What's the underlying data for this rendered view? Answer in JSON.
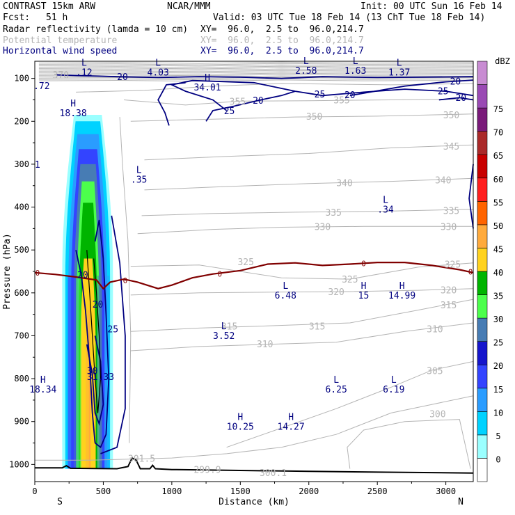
{
  "header": {
    "model": "CONTRAST 15km ARW",
    "org": "NCAR/MMM",
    "init": "Init: 00 UTC Sun 16 Feb 14",
    "fcst_label": "Fcst:",
    "fcst_value": "51 h",
    "valid": "Valid: 03 UTC Tue 18 Feb 14 (13 ChT Tue 18 Feb 14)",
    "field1": "Radar reflectivity (lamda = 10 cm)",
    "field1_xy": "XY=  96.0,  2.5 to  96.0,214.7",
    "field2": "Potential temperature",
    "field2_xy": "XY=  96.0,  2.5 to  96.0,214.7",
    "field3": "Horizontal wind speed",
    "field3_xy": "XY=  96.0,  2.5 to  96.0,214.7"
  },
  "colors": {
    "theta": "#b4b4b4",
    "wind": "#000080",
    "zero_isotherm": "#800000",
    "terrain": "#000000"
  },
  "chart_data": {
    "type": "heatmap",
    "title": "Radar reflectivity (lamda = 10 cm)",
    "xlabel": "Distance (km)",
    "ylabel": "Pressure (hPa)",
    "xlim": [
      0,
      3200
    ],
    "ylim": [
      1040,
      60
    ],
    "xticks": [
      0,
      500,
      1000,
      1500,
      2000,
      2500,
      3000
    ],
    "yticks": [
      100,
      200,
      300,
      400,
      500,
      600,
      700,
      800,
      900,
      1000
    ],
    "x_endpoints": {
      "left": "S",
      "right": "N"
    },
    "colorbar": {
      "unit": "dBZ",
      "levels": [
        0,
        5,
        10,
        15,
        20,
        25,
        30,
        35,
        40,
        45,
        50,
        55,
        60,
        65,
        70,
        75
      ],
      "colors": [
        "#ffffff",
        "#9bffff",
        "#00d2ff",
        "#2a9cff",
        "#3344ff",
        "#1515cc",
        "#477cb4",
        "#4cff4c",
        "#00b400",
        "#ffd21e",
        "#ffaa3c",
        "#ff6400",
        "#ff1e1e",
        "#c80000",
        "#aa2a2a",
        "#7a1a7a",
        "#9a4ab4",
        "#c88cd2"
      ]
    },
    "reflectivity_cell": {
      "x_range_km": [
        200,
        580
      ],
      "top_hPa": 185,
      "bottom_hPa": 1010,
      "max_dBZ": 40
    },
    "theta_isentropes": [
      {
        "value": 300,
        "label": "300",
        "x": 2940,
        "p": 882
      },
      {
        "value": 305,
        "label": "305",
        "x": 2920,
        "p": 781
      },
      {
        "value": 310,
        "label": "310",
        "x": 1680,
        "p": 719
      },
      {
        "value": 310,
        "label": "310",
        "x": 2920,
        "p": 684
      },
      {
        "value": 315,
        "label": "315",
        "x": 1420,
        "p": 677
      },
      {
        "value": 315,
        "label": "315",
        "x": 2060,
        "p": 677
      },
      {
        "value": 315,
        "label": "315",
        "x": 3020,
        "p": 628
      },
      {
        "value": 320,
        "label": "320",
        "x": 2200,
        "p": 597
      },
      {
        "value": 320,
        "label": "320",
        "x": 3020,
        "p": 593
      },
      {
        "value": 325,
        "label": "325",
        "x": 1540,
        "p": 527
      },
      {
        "value": 325,
        "label": "325",
        "x": 2300,
        "p": 568
      },
      {
        "value": 325,
        "label": "325",
        "x": 3050,
        "p": 533
      },
      {
        "value": 330,
        "label": "330",
        "x": 2100,
        "p": 445
      },
      {
        "value": 330,
        "label": "330",
        "x": 3020,
        "p": 445
      },
      {
        "value": 335,
        "label": "335",
        "x": 2180,
        "p": 412
      },
      {
        "value": 335,
        "label": "335",
        "x": 3040,
        "p": 408
      },
      {
        "value": 340,
        "label": "340",
        "x": 2260,
        "p": 343
      },
      {
        "value": 340,
        "label": "340",
        "x": 2980,
        "p": 337
      },
      {
        "value": 345,
        "label": "345",
        "x": 3040,
        "p": 258
      },
      {
        "value": 350,
        "label": "350",
        "x": 2040,
        "p": 188
      },
      {
        "value": 350,
        "label": "350",
        "x": 3040,
        "p": 185
      },
      {
        "value": 355,
        "label": "355",
        "x": 1480,
        "p": 153
      },
      {
        "value": 355,
        "label": "355",
        "x": 2240,
        "p": 150
      },
      {
        "value": 370,
        "label": "370",
        "x": 190,
        "p": 92
      },
      {
        "value": 301.5,
        "label": "301.5",
        "x": 780,
        "p": 986
      },
      {
        "value": 299.9,
        "label": "299.9",
        "x": 1260,
        "p": 1012
      },
      {
        "value": 300.1,
        "label": "300.1",
        "x": 1740,
        "p": 1019
      }
    ],
    "wind_contour_labels": [
      {
        "value": 20,
        "x": 640,
        "p": 96
      },
      {
        "value": 20,
        "x": 1630,
        "p": 151
      },
      {
        "value": 25,
        "x": 1420,
        "p": 175
      },
      {
        "value": 25,
        "x": 2080,
        "p": 136
      },
      {
        "value": 20,
        "x": 2300,
        "p": 138
      },
      {
        "value": 25,
        "x": 2980,
        "p": 129
      },
      {
        "value": 20,
        "x": 3070,
        "p": 106
      },
      {
        "value": 20,
        "x": 3110,
        "p": 144
      },
      {
        "value": 20,
        "x": 350,
        "p": 557
      },
      {
        "value": 20,
        "x": 460,
        "p": 626
      },
      {
        "value": 25,
        "x": 570,
        "p": 684
      },
      {
        "value": 30,
        "x": 420,
        "p": 781
      }
    ],
    "zero_isotherm": {
      "label": "0",
      "points": [
        [
          0,
          553
        ],
        [
          150,
          557
        ],
        [
          300,
          563
        ],
        [
          450,
          570
        ],
        [
          500,
          590
        ],
        [
          550,
          575
        ],
        [
          650,
          568
        ],
        [
          750,
          575
        ],
        [
          900,
          590
        ],
        [
          1000,
          582
        ],
        [
          1150,
          565
        ],
        [
          1300,
          556
        ],
        [
          1500,
          548
        ],
        [
          1700,
          533
        ],
        [
          1900,
          530
        ],
        [
          2100,
          536
        ],
        [
          2300,
          533
        ],
        [
          2500,
          529
        ],
        [
          2700,
          529
        ],
        [
          2900,
          536
        ],
        [
          3100,
          546
        ],
        [
          3200,
          553
        ]
      ]
    },
    "extrema": [
      {
        "kind": "L",
        "value": ".12",
        "x": 360,
        "p": 80
      },
      {
        "kind": "L",
        "value": "4.03",
        "x": 900,
        "p": 80
      },
      {
        "kind": "H",
        "value": "34.01",
        "x": 1260,
        "p": 115
      },
      {
        "kind": "L",
        "value": "2.58",
        "x": 1980,
        "p": 76
      },
      {
        "kind": "L",
        "value": "1.63",
        "x": 2340,
        "p": 76
      },
      {
        "kind": "L",
        "value": "1.37",
        "x": 2660,
        "p": 80
      },
      {
        "kind": "",
        "value": ".72",
        "x": 50,
        "p": 112
      },
      {
        "kind": "H",
        "value": "18.38",
        "x": 280,
        "p": 175
      },
      {
        "kind": "L",
        "value": ".35",
        "x": 760,
        "p": 330
      },
      {
        "kind": "L",
        "value": ".34",
        "x": 2560,
        "p": 400
      },
      {
        "kind": "L",
        "value": "6.48",
        "x": 1830,
        "p": 600
      },
      {
        "kind": "H",
        "value": "15",
        "x": 2400,
        "p": 600
      },
      {
        "kind": "H",
        "value": "14.99",
        "x": 2680,
        "p": 600
      },
      {
        "kind": "L",
        "value": "3.52",
        "x": 1380,
        "p": 694
      },
      {
        "kind": "",
        "value": "31.33",
        "x": 480,
        "p": 790
      },
      {
        "kind": "H",
        "value": "18.34",
        "x": 60,
        "p": 819
      },
      {
        "kind": "L",
        "value": "6.25",
        "x": 2200,
        "p": 819
      },
      {
        "kind": "L",
        "value": "6.19",
        "x": 2620,
        "p": 819
      },
      {
        "kind": "H",
        "value": "10.25",
        "x": 1500,
        "p": 906
      },
      {
        "kind": "H",
        "value": "14.27",
        "x": 1870,
        "p": 906
      }
    ],
    "stray_labels": [
      {
        "text": "1",
        "x": 20,
        "p": 300
      }
    ],
    "terrain": {
      "points": [
        [
          0,
          1008
        ],
        [
          200,
          1008
        ],
        [
          230,
          1003
        ],
        [
          260,
          1009
        ],
        [
          600,
          1010
        ],
        [
          680,
          1005
        ],
        [
          710,
          985
        ],
        [
          740,
          990
        ],
        [
          770,
          1010
        ],
        [
          840,
          1010
        ],
        [
          860,
          1002
        ],
        [
          880,
          1010
        ],
        [
          1000,
          1012
        ],
        [
          1500,
          1014
        ],
        [
          2000,
          1016
        ],
        [
          2500,
          1018
        ],
        [
          3200,
          1020
        ]
      ]
    }
  }
}
